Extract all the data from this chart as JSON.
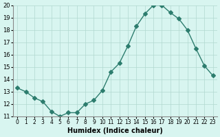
{
  "x": [
    0,
    1,
    2,
    3,
    4,
    5,
    6,
    7,
    8,
    9,
    10,
    11,
    12,
    13,
    14,
    15,
    16,
    17,
    18,
    19,
    20,
    21,
    22,
    23
  ],
  "y": [
    13.3,
    13.0,
    12.5,
    12.2,
    11.4,
    11.0,
    11.3,
    11.3,
    12.0,
    12.3,
    13.1,
    14.6,
    15.3,
    16.7,
    18.3,
    19.3,
    20.0,
    20.0,
    19.4,
    18.9,
    18.0,
    16.5,
    15.1,
    14.3
  ],
  "line_color": "#2d7d6e",
  "marker": "D",
  "marker_size": 3,
  "bg_color": "#d8f5f0",
  "grid_color": "#b0d8d0",
  "xlabel": "Humidex (Indice chaleur)",
  "ylim": [
    11,
    20
  ],
  "xlim": [
    -0.5,
    23.5
  ],
  "yticks": [
    11,
    12,
    13,
    14,
    15,
    16,
    17,
    18,
    19,
    20
  ],
  "xticks": [
    0,
    1,
    2,
    3,
    4,
    5,
    6,
    7,
    8,
    9,
    10,
    11,
    12,
    13,
    14,
    15,
    16,
    17,
    18,
    19,
    20,
    21,
    22,
    23
  ]
}
